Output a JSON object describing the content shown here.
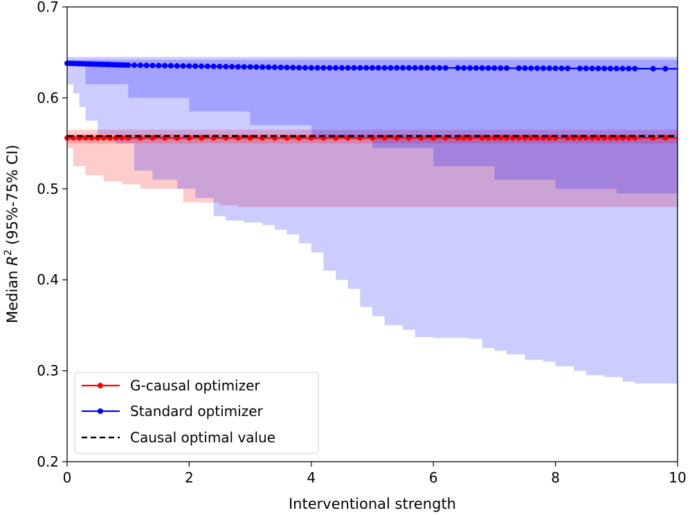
{
  "chart_data": {
    "type": "line",
    "title": "",
    "xlabel": "Interventional strength",
    "ylabel_prefix": "Median ",
    "ylabel_var": "R",
    "ylabel_sup": "2",
    "ylabel_suffix": " (95%-75% CI)",
    "xlim": [
      0,
      10
    ],
    "ylim": [
      0.2,
      0.7
    ],
    "xticks": [
      0,
      2,
      4,
      6,
      8,
      10
    ],
    "xtick_labels": [
      "0",
      "2",
      "4",
      "6",
      "8",
      "10"
    ],
    "yticks": [
      0.2,
      0.3,
      0.4,
      0.5,
      0.6,
      0.7
    ],
    "ytick_labels": [
      "0.2",
      "0.3",
      "0.4",
      "0.5",
      "0.6",
      "0.7"
    ],
    "legend_position": "lower-left",
    "series": [
      {
        "name": "G-causal optimizer",
        "color": "#ff0000",
        "marker": "circle",
        "median": [
          [
            0,
            0.556
          ],
          [
            10,
            0.556
          ]
        ],
        "marker_x": [
          0,
          0.1,
          0.2,
          0.3,
          0.4,
          0.5,
          0.6,
          0.7,
          0.8,
          0.9,
          1.0,
          1.2,
          1.4,
          1.6,
          1.8,
          2.0,
          2.2,
          2.4,
          2.6,
          2.8,
          3.0,
          3.2,
          3.4,
          3.6,
          3.8,
          4.0,
          4.2,
          4.4,
          4.6,
          4.8,
          5.0,
          5.2,
          5.4,
          5.6,
          5.8,
          6.0,
          6.2,
          6.4,
          6.5,
          6.6,
          6.8,
          6.9,
          7.0,
          7.1,
          7.2,
          7.3,
          7.4,
          7.5,
          7.6,
          7.7,
          7.8,
          7.9,
          8.0,
          8.2,
          8.3,
          8.4,
          8.5,
          8.6,
          8.7,
          8.8,
          8.9,
          9.0,
          9.1,
          9.2,
          9.3,
          9.6,
          9.8
        ],
        "band_outer_upper": [
          [
            0,
            0.565
          ],
          [
            10,
            0.565
          ]
        ],
        "band_outer_lower": [
          [
            0,
            0.545
          ],
          [
            0.1,
            0.525
          ],
          [
            0.3,
            0.515
          ],
          [
            0.6,
            0.508
          ],
          [
            0.9,
            0.505
          ],
          [
            1.2,
            0.5
          ],
          [
            1.6,
            0.5
          ],
          [
            1.9,
            0.485
          ],
          [
            2.5,
            0.482
          ],
          [
            2.8,
            0.48
          ],
          [
            10,
            0.48
          ]
        ],
        "band_inner_upper": [
          [
            0,
            0.56
          ],
          [
            10,
            0.56
          ]
        ],
        "band_inner_lower": [
          [
            0,
            0.55
          ],
          [
            10,
            0.55
          ]
        ]
      },
      {
        "name": "Standard optimizer",
        "color": "#0000ff",
        "marker": "circle",
        "median": [
          [
            0,
            0.638
          ],
          [
            0.5,
            0.637
          ],
          [
            1,
            0.636
          ],
          [
            2,
            0.635
          ],
          [
            3,
            0.634
          ],
          [
            4,
            0.633
          ],
          [
            6,
            0.633
          ],
          [
            10,
            0.632
          ]
        ],
        "marker_x": [
          0,
          0.05,
          0.1,
          0.15,
          0.2,
          0.25,
          0.3,
          0.35,
          0.4,
          0.45,
          0.5,
          0.55,
          0.6,
          0.65,
          0.7,
          0.75,
          0.8,
          0.85,
          0.9,
          0.95,
          1.0,
          1.1,
          1.2,
          1.3,
          1.4,
          1.5,
          1.6,
          1.7,
          1.8,
          1.9,
          2.0,
          2.1,
          2.2,
          2.3,
          2.4,
          2.5,
          2.6,
          2.7,
          2.8,
          2.9,
          3.0,
          3.1,
          3.2,
          3.3,
          3.4,
          3.5,
          3.6,
          3.7,
          3.8,
          3.9,
          4.0,
          4.1,
          4.2,
          4.3,
          4.4,
          4.5,
          4.6,
          4.7,
          4.8,
          4.9,
          5.0,
          5.1,
          5.2,
          5.3,
          5.4,
          5.5,
          5.6,
          5.7,
          5.8,
          5.9,
          6.0,
          6.1,
          6.2,
          6.4,
          6.5,
          6.6,
          6.7,
          6.8,
          6.9,
          7.0,
          7.1,
          7.2,
          7.4,
          7.5,
          7.6,
          7.7,
          7.8,
          7.9,
          8.0,
          8.1,
          8.2,
          8.4,
          8.5,
          8.6,
          8.7,
          8.8,
          8.9,
          9.0,
          9.1,
          9.2,
          9.3,
          9.6,
          9.8
        ],
        "band_outer_upper": [
          [
            0,
            0.645
          ],
          [
            10,
            0.645
          ]
        ],
        "band_outer_lower": [
          [
            0,
            0.615
          ],
          [
            0.1,
            0.605
          ],
          [
            0.2,
            0.59
          ],
          [
            0.3,
            0.575
          ],
          [
            0.5,
            0.56
          ],
          [
            0.8,
            0.55
          ],
          [
            1.1,
            0.52
          ],
          [
            1.4,
            0.51
          ],
          [
            1.8,
            0.5
          ],
          [
            2.1,
            0.49
          ],
          [
            2.4,
            0.47
          ],
          [
            2.6,
            0.465
          ],
          [
            2.9,
            0.463
          ],
          [
            3.2,
            0.46
          ],
          [
            3.4,
            0.455
          ],
          [
            3.6,
            0.45
          ],
          [
            3.8,
            0.44
          ],
          [
            4.0,
            0.43
          ],
          [
            4.2,
            0.41
          ],
          [
            4.4,
            0.4
          ],
          [
            4.6,
            0.39
          ],
          [
            4.8,
            0.37
          ],
          [
            5.0,
            0.36
          ],
          [
            5.2,
            0.35
          ],
          [
            5.5,
            0.345
          ],
          [
            5.7,
            0.337
          ],
          [
            6.0,
            0.336
          ],
          [
            6.6,
            0.335
          ],
          [
            6.8,
            0.325
          ],
          [
            7.0,
            0.322
          ],
          [
            7.2,
            0.318
          ],
          [
            7.5,
            0.312
          ],
          [
            7.8,
            0.31
          ],
          [
            8.0,
            0.305
          ],
          [
            8.3,
            0.3
          ],
          [
            8.5,
            0.295
          ],
          [
            8.8,
            0.293
          ],
          [
            9.1,
            0.288
          ],
          [
            9.3,
            0.286
          ],
          [
            10,
            0.286
          ]
        ],
        "band_inner_upper": [
          [
            0,
            0.642
          ],
          [
            10,
            0.642
          ]
        ],
        "band_inner_lower": [
          [
            0,
            0.635
          ],
          [
            0.3,
            0.615
          ],
          [
            1.0,
            0.6
          ],
          [
            2.0,
            0.585
          ],
          [
            3.0,
            0.57
          ],
          [
            4.0,
            0.555
          ],
          [
            5.0,
            0.545
          ],
          [
            6.0,
            0.525
          ],
          [
            7.0,
            0.51
          ],
          [
            8.0,
            0.5
          ],
          [
            9.0,
            0.495
          ],
          [
            10,
            0.492
          ]
        ]
      },
      {
        "name": "Causal optimal value",
        "color": "#000000",
        "style": "dashed",
        "median": [
          [
            0,
            0.558
          ],
          [
            10,
            0.558
          ]
        ]
      }
    ]
  }
}
